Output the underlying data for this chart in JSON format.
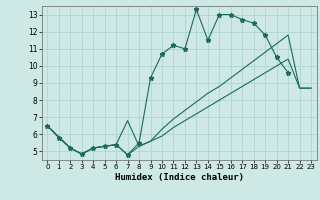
{
  "xlabel": "Humidex (Indice chaleur)",
  "bg_color": "#cde8e5",
  "grid_color": "#afd4d0",
  "line_color": "#1a6b5a",
  "xlim": [
    -0.5,
    23.5
  ],
  "ylim": [
    4.5,
    13.5
  ],
  "xticks": [
    0,
    1,
    2,
    3,
    4,
    5,
    6,
    7,
    8,
    9,
    10,
    11,
    12,
    13,
    14,
    15,
    16,
    17,
    18,
    19,
    20,
    21,
    22,
    23
  ],
  "yticks": [
    5,
    6,
    7,
    8,
    9,
    10,
    11,
    12,
    13
  ],
  "line1_x": [
    0,
    1,
    2,
    3,
    4,
    5,
    6,
    7,
    8,
    9,
    10,
    11,
    12,
    13,
    14,
    15,
    16,
    17,
    18,
    19,
    20,
    21
  ],
  "line1_y": [
    6.5,
    5.8,
    5.2,
    4.85,
    5.2,
    5.3,
    5.4,
    4.8,
    5.5,
    9.3,
    10.7,
    11.2,
    11.0,
    13.3,
    11.5,
    13.0,
    13.0,
    12.7,
    12.5,
    11.8,
    10.5,
    9.6
  ],
  "line2_x": [
    0,
    2,
    3,
    4,
    5,
    6,
    7,
    8,
    9,
    10,
    11,
    12,
    13,
    14,
    15,
    16,
    17,
    18,
    19,
    20,
    21,
    22,
    23
  ],
  "line2_y": [
    6.5,
    5.2,
    4.85,
    5.2,
    5.3,
    5.4,
    6.8,
    5.3,
    5.6,
    6.3,
    6.9,
    7.4,
    7.9,
    8.4,
    8.8,
    9.3,
    9.8,
    10.3,
    10.8,
    11.3,
    11.8,
    8.7,
    8.7
  ],
  "line3_x": [
    0,
    2,
    3,
    4,
    5,
    6,
    7,
    8,
    9,
    10,
    11,
    12,
    13,
    14,
    15,
    16,
    17,
    18,
    19,
    20,
    21,
    22,
    23
  ],
  "line3_y": [
    6.5,
    5.2,
    4.85,
    5.2,
    5.3,
    5.4,
    4.8,
    5.3,
    5.6,
    5.9,
    6.4,
    6.8,
    7.2,
    7.6,
    8.0,
    8.4,
    8.8,
    9.2,
    9.6,
    10.0,
    10.4,
    8.7,
    8.7
  ]
}
